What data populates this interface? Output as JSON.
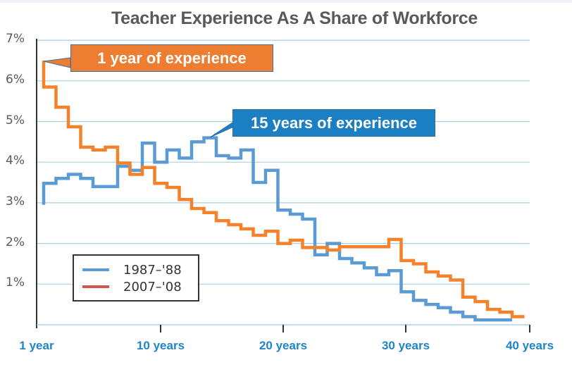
{
  "chart_data": {
    "type": "line",
    "step": true,
    "title": "Teacher Experience As A Share of Workforce",
    "xlabel": "",
    "ylabel": "",
    "x_tick_labels": [
      "1 year",
      "10 years",
      "20 years",
      "30 years",
      "40 years"
    ],
    "y_tick_labels": [
      "1%",
      "2%",
      "3%",
      "4%",
      "5%",
      "6%",
      "7%"
    ],
    "ylim": [
      0,
      7
    ],
    "xlim": [
      1,
      40
    ],
    "grid": "horizontal",
    "legend_position": "lower-left",
    "x": [
      1,
      2,
      3,
      4,
      5,
      6,
      7,
      8,
      9,
      10,
      11,
      12,
      13,
      14,
      15,
      16,
      17,
      18,
      19,
      20,
      21,
      22,
      23,
      24,
      25,
      26,
      27,
      28,
      29,
      30,
      31,
      32,
      33,
      34,
      35,
      36,
      37,
      38,
      39
    ],
    "series": [
      {
        "name": "1987-'88",
        "color": "#5b9bd5",
        "legend_color": "#5b9bd5",
        "start_value": 2.95,
        "values": [
          3.48,
          3.6,
          3.7,
          3.6,
          3.4,
          3.4,
          3.9,
          3.8,
          4.47,
          4.0,
          4.3,
          4.1,
          4.5,
          4.6,
          4.16,
          4.1,
          4.3,
          3.5,
          3.8,
          2.82,
          2.72,
          2.6,
          1.72,
          2.0,
          1.63,
          1.52,
          1.4,
          1.23,
          1.33,
          0.81,
          0.6,
          0.5,
          0.42,
          0.31,
          0.2,
          0.12,
          0.12,
          0.12,
          null
        ]
      },
      {
        "name": "2007-'08",
        "color": "#f5822a",
        "legend_color": "#d9534f",
        "start_value": 6.5,
        "values": [
          5.85,
          5.35,
          4.87,
          4.37,
          4.3,
          4.37,
          3.98,
          3.7,
          3.87,
          3.48,
          3.38,
          3.08,
          2.86,
          2.76,
          2.56,
          2.46,
          2.36,
          2.2,
          2.3,
          2.0,
          2.08,
          1.9,
          1.9,
          1.84,
          1.92,
          1.92,
          1.92,
          1.92,
          2.1,
          1.58,
          1.5,
          1.3,
          1.2,
          1.1,
          0.68,
          0.57,
          0.38,
          0.31,
          0.2
        ]
      }
    ],
    "annotations": [
      {
        "text": "1 year of experience",
        "series": "2007-'08",
        "x": 1,
        "y": 6.5
      },
      {
        "text": "15 years of experience",
        "series": "1987-'88",
        "x": 14,
        "y": 4.6
      }
    ]
  },
  "legend": {
    "items": [
      {
        "label": "1987–'88"
      },
      {
        "label": "2007–'08"
      }
    ]
  }
}
